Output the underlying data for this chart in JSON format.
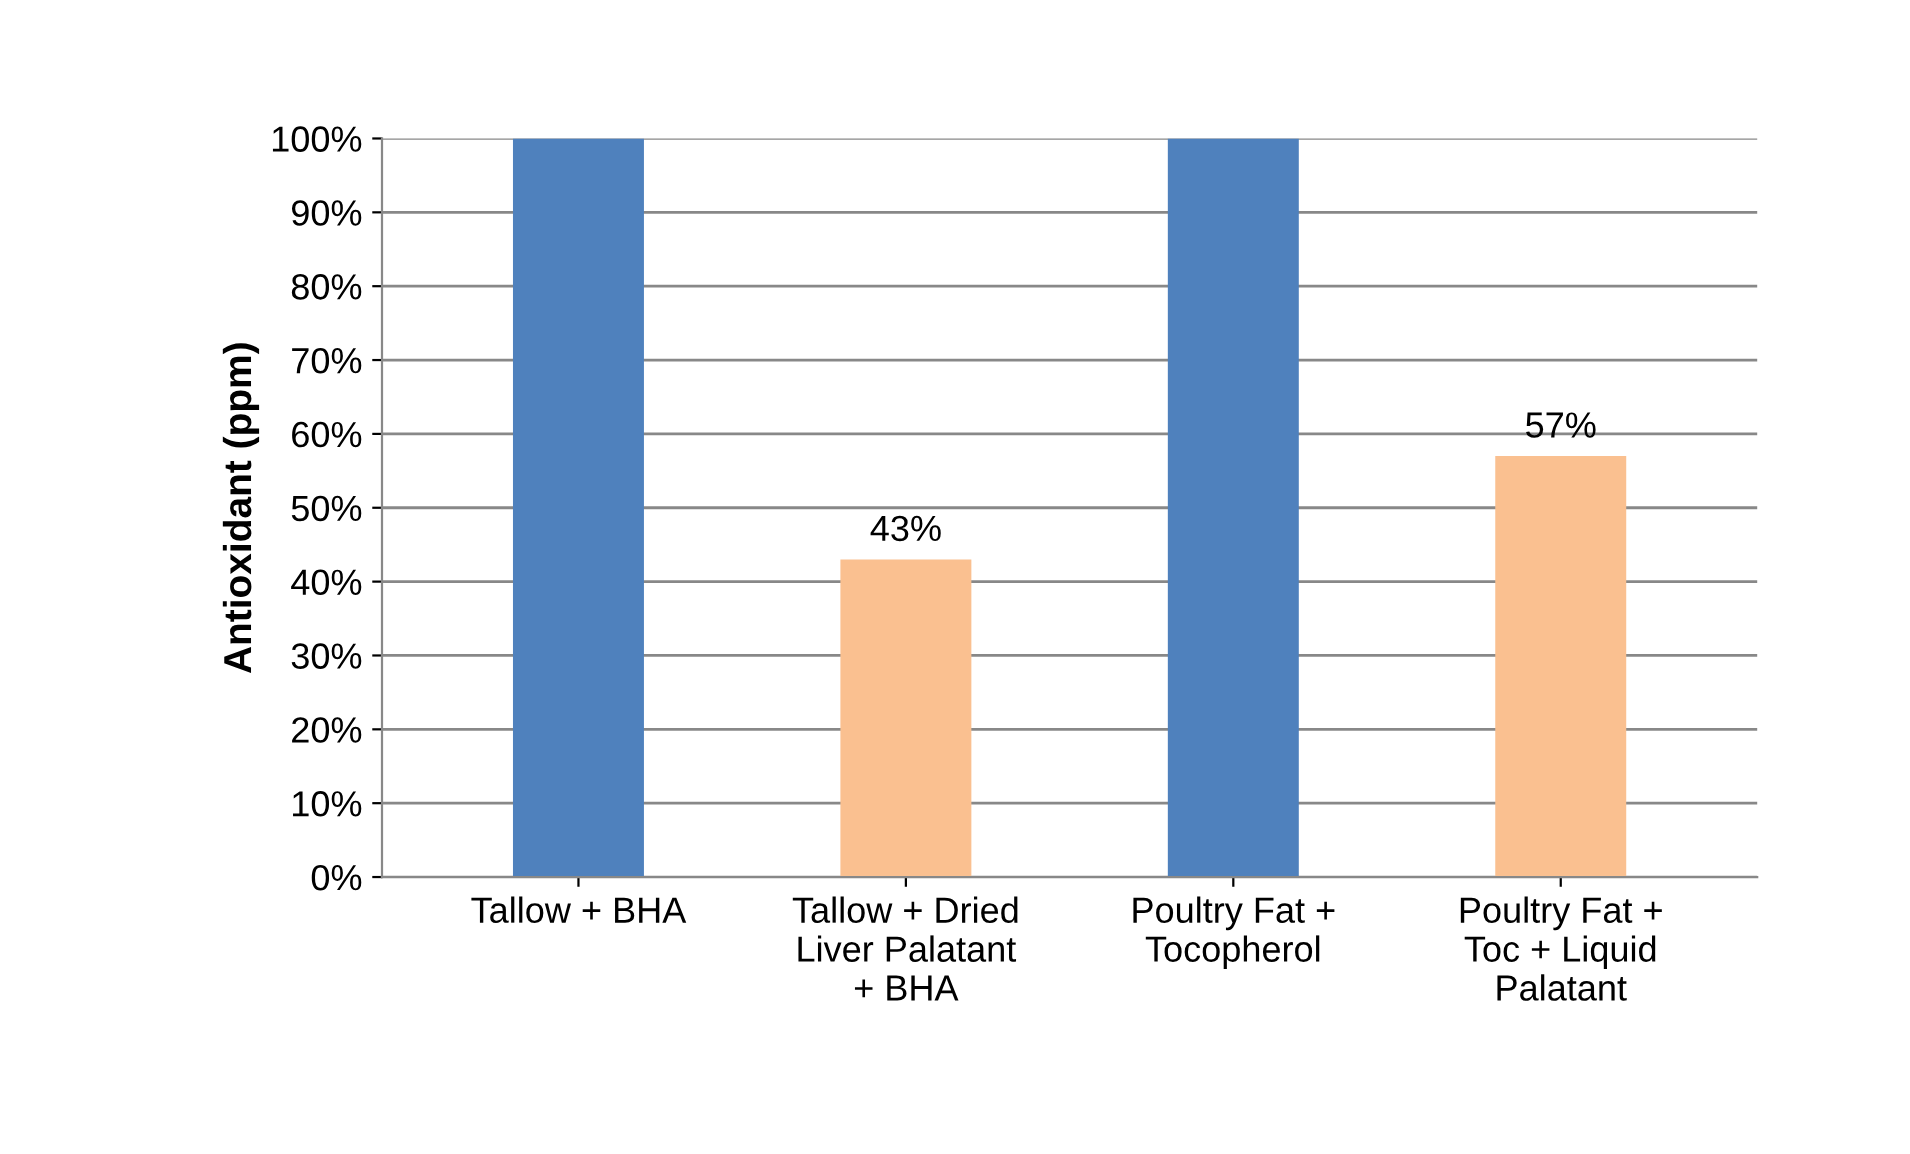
{
  "chart_data": {
    "type": "bar",
    "ylabel": "Antioxidant (ppm)",
    "categories": [
      "Tallow + BHA",
      "Tallow + Dried\nLiver Palatant\n+ BHA",
      "Poultry Fat +\nTocopherol",
      "Poultry Fat +\nToc + Liquid\nPalatant"
    ],
    "values": [
      100,
      43,
      100,
      57
    ],
    "colors": [
      "#4f81bd",
      "#fac090",
      "#4f81bd",
      "#fac090"
    ],
    "value_labels": [
      null,
      "43%",
      null,
      "57%"
    ],
    "ylim": [
      0,
      100
    ],
    "yticks": [
      {
        "value": 0,
        "label": "0%"
      },
      {
        "value": 10,
        "label": "10%"
      },
      {
        "value": 20,
        "label": "20%"
      },
      {
        "value": 30,
        "label": "30%"
      },
      {
        "value": 40,
        "label": "40%"
      },
      {
        "value": 50,
        "label": "50%"
      },
      {
        "value": 60,
        "label": "60%"
      },
      {
        "value": 70,
        "label": "70%"
      },
      {
        "value": 80,
        "label": "80%"
      },
      {
        "value": 90,
        "label": "90%"
      },
      {
        "value": 100,
        "label": "100%"
      }
    ],
    "grid": "y",
    "legend": false
  }
}
